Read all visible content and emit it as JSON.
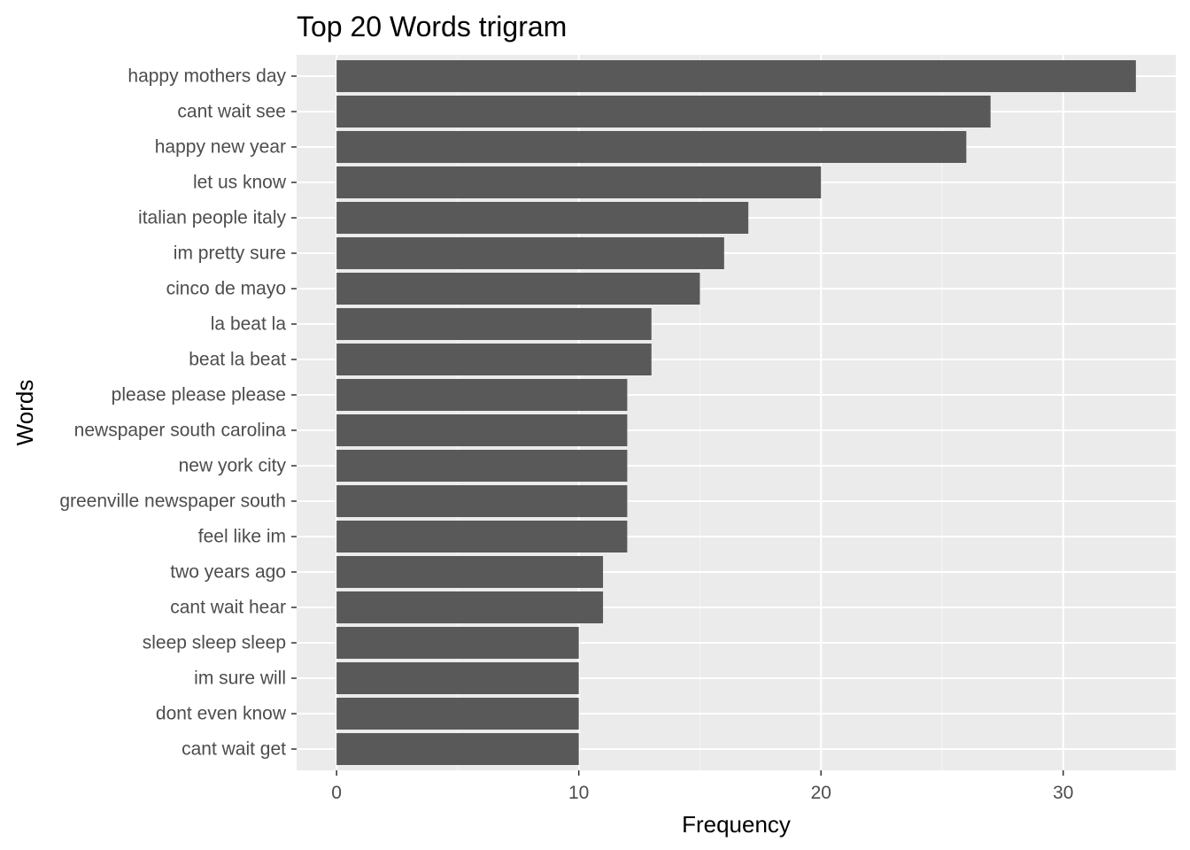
{
  "chart_data": {
    "type": "bar",
    "orientation": "horizontal",
    "title": "Top 20 Words trigram",
    "xlabel": "Frequency",
    "ylabel": "Words",
    "categories": [
      "happy mothers day",
      "cant wait see",
      "happy new year",
      "let us know",
      "italian people italy",
      "im pretty sure",
      "cinco de mayo",
      "la beat la",
      "beat la beat",
      "please please please",
      "newspaper south carolina",
      "new york city",
      "greenville newspaper south",
      "feel like im",
      "two years ago",
      "cant wait hear",
      "sleep sleep sleep",
      "im sure will",
      "dont even know",
      "cant wait get"
    ],
    "values": [
      33,
      27,
      26,
      20,
      17,
      16,
      15,
      13,
      13,
      12,
      12,
      12,
      12,
      12,
      11,
      11,
      10,
      10,
      10,
      10
    ],
    "xlim": [
      -1.65,
      34.65
    ],
    "xticks": [
      0,
      10,
      20,
      30
    ],
    "grid": true,
    "legend": "none",
    "colors": {
      "bar": "#595959",
      "panel": "#ebebeb",
      "grid_major": "#ffffff",
      "tick_label": "#4d4d4d",
      "tick_mark": "#333333"
    }
  }
}
